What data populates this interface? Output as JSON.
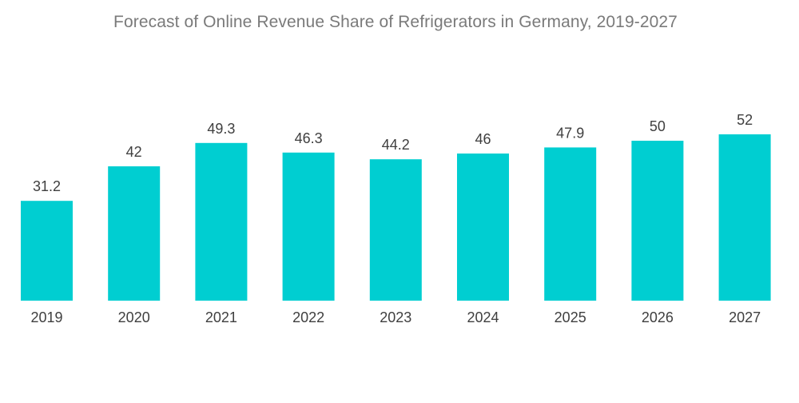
{
  "chart_data": {
    "type": "bar",
    "title": "Forecast of Online Revenue Share of Refrigerators in Germany, 2019-2027",
    "categories": [
      "2019",
      "2020",
      "2021",
      "2022",
      "2023",
      "2024",
      "2025",
      "2026",
      "2027"
    ],
    "values": [
      31.2,
      42,
      49.3,
      46.3,
      44.2,
      46,
      47.9,
      50,
      52
    ],
    "value_labels": [
      "31.2",
      "42",
      "49.3",
      "46.3",
      "44.2",
      "46",
      "47.9",
      "50",
      "52"
    ],
    "xlabel": "",
    "ylabel": "",
    "ylim": [
      0,
      52
    ],
    "grid": false,
    "legend": "none",
    "bar_color": "#00CED1"
  }
}
